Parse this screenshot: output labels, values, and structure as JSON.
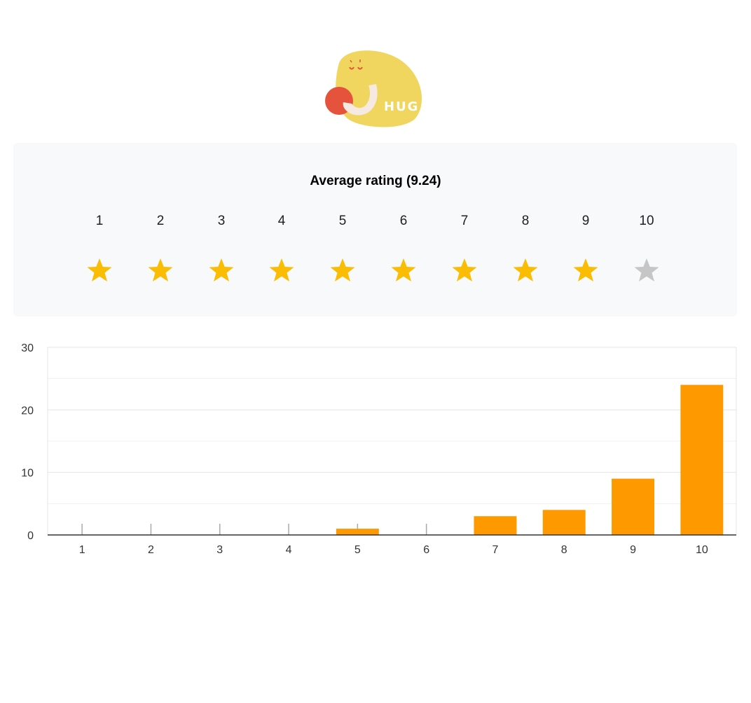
{
  "logo": {
    "text": "HUG"
  },
  "rating": {
    "label": "Average rating",
    "value": "9.24",
    "max": 10,
    "filled": 9,
    "scale": [
      "1",
      "2",
      "3",
      "4",
      "5",
      "6",
      "7",
      "8",
      "9",
      "10"
    ],
    "colors": {
      "filled": "#FBBC04",
      "empty": "#C6C6C6"
    }
  },
  "chart_data": {
    "type": "bar",
    "categories": [
      "1",
      "2",
      "3",
      "4",
      "5",
      "6",
      "7",
      "8",
      "9",
      "10"
    ],
    "values": [
      0,
      0,
      0,
      0,
      1,
      0,
      3,
      4,
      9,
      24
    ],
    "ylim": [
      0,
      30
    ],
    "yticks": [
      0,
      10,
      20,
      30
    ],
    "grid": true,
    "color": "#FF9900",
    "title": "",
    "xlabel": "",
    "ylabel": ""
  }
}
